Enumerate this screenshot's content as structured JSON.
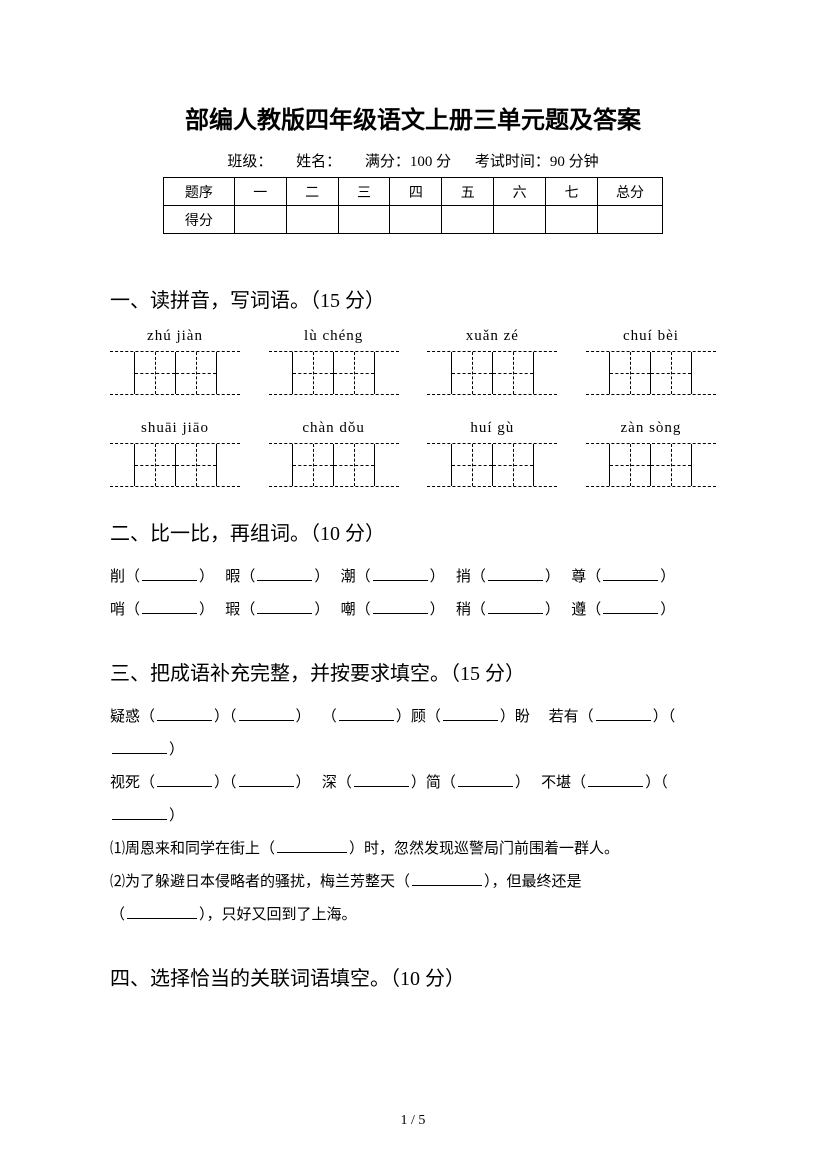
{
  "title": "部编人教版四年级语文上册三单元题及答案",
  "info": {
    "class_label": "班级：",
    "name_label": "姓名：",
    "full_score": "满分：100 分",
    "exam_time": "考试时间：90 分钟"
  },
  "score_table": {
    "row1_label": "题序",
    "cols": [
      "一",
      "二",
      "三",
      "四",
      "五",
      "六",
      "七"
    ],
    "total_label": "总分",
    "row2_label": "得分"
  },
  "section1": {
    "heading": "一、读拼音，写词语。（15 分）",
    "row1": [
      "zhú  jiàn",
      "lù  chéng",
      "xuǎn  zé",
      "chuí  bèi"
    ],
    "row2": [
      "shuāi  jiāo",
      "chàn  dǒu",
      "huí  gù",
      "zàn  sòng"
    ]
  },
  "section2": {
    "heading": "二、比一比，再组词。（10 分）",
    "pairs_row1": [
      "削",
      "暇",
      "潮",
      "捎",
      "尊"
    ],
    "pairs_row2": [
      "哨",
      "瑕",
      "嘲",
      "稍",
      "遵"
    ]
  },
  "section3": {
    "heading": "三、把成语补充完整，并按要求填空。（15 分）",
    "line1_a": "疑惑",
    "line1_b": "顾",
    "line1_c": "盼",
    "line1_d": "若有",
    "line2_a": "视死",
    "line2_b": "深",
    "line2_c": "简",
    "line2_d": "不堪",
    "sent1_a": "⑴周恩来和同学在街上（",
    "sent1_b": "）时，忽然发现巡警局门前围着一群人。",
    "sent2_a": "⑵为了躲避日本侵略者的骚扰，梅兰芳整天（",
    "sent2_b": "），但最终还是",
    "sent2_c": "（",
    "sent2_d": "），只好又回到了上海。"
  },
  "section4": {
    "heading": "四、选择恰当的关联词语填空。（10 分）"
  },
  "footer": "1 / 5"
}
